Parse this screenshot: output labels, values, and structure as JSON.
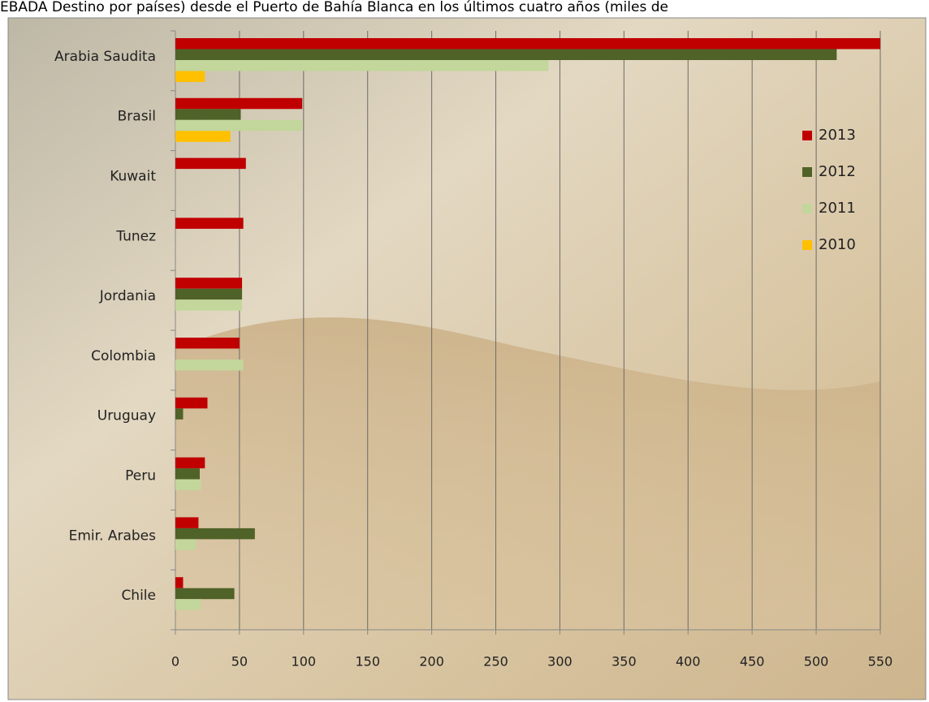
{
  "chart_data": {
    "type": "bar",
    "orientation": "horizontal",
    "title": "EBADA Destino por países) desde el Puerto de Bahía Blanca en los últimos cuatro años (miles de",
    "categories": [
      "Arabia Saudita",
      "Brasil",
      "Kuwait",
      "Tunez",
      "Jordania",
      "Colombia",
      "Uruguay",
      "Peru",
      "Emir. Arabes",
      "Chile"
    ],
    "series": [
      {
        "name": "2013",
        "color": "#c00000",
        "values": [
          550,
          99,
          55,
          53,
          52,
          50,
          25,
          23,
          18,
          6
        ]
      },
      {
        "name": "2012",
        "color": "#4f6228",
        "values": [
          516,
          51,
          null,
          null,
          52,
          null,
          6,
          19,
          62,
          46
        ]
      },
      {
        "name": "2011",
        "color": "#c3d69b",
        "values": [
          291,
          99,
          null,
          null,
          52,
          53,
          null,
          20,
          16,
          20
        ]
      },
      {
        "name": "2010",
        "color": "#ffc000",
        "values": [
          23,
          43,
          null,
          null,
          null,
          null,
          null,
          null,
          null,
          null
        ]
      }
    ],
    "xlim": [
      0,
      550
    ],
    "xticks": [
      0,
      50,
      100,
      150,
      200,
      250,
      300,
      350,
      400,
      450,
      500,
      550
    ],
    "grid": true,
    "legend": "right"
  }
}
